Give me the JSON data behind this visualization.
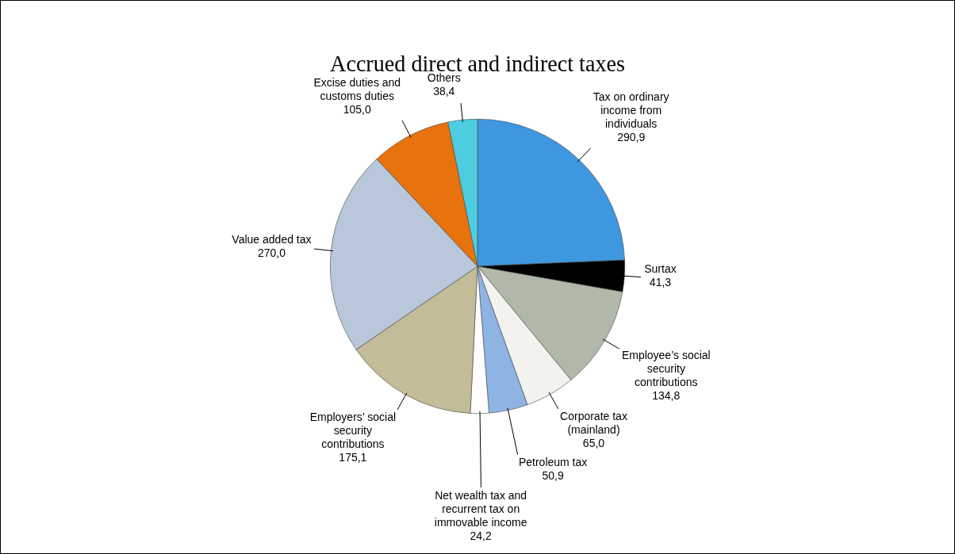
{
  "chart_data": {
    "type": "pie",
    "title": "Accrued direct and indirect taxes",
    "categories": [
      "Tax on ordinary income from individuals",
      "Surtax",
      "Employee’s social security contributions",
      "Corporate tax (mainland)",
      "Petroleum tax",
      "Net wealth tax and recurrent tax on immovable income",
      "Employers’ social security contributions",
      "Value added tax",
      "Excise duties and customs duties",
      "Others"
    ],
    "values": [
      290.9,
      41.3,
      134.8,
      65.0,
      50.9,
      24.2,
      175.1,
      270.0,
      105.0,
      38.4
    ],
    "value_labels": [
      "290,9",
      "41,3",
      "134,8",
      "65,0",
      "50,9",
      "24,2",
      "175,1",
      "270,0",
      "105,0",
      "38,4"
    ],
    "colors": [
      "#3f97e0",
      "#000000",
      "#b0b8aa",
      "#f2f2ee",
      "#8eb4e3",
      "#ffffff",
      "#c4bb98",
      "#b8c7d9",
      "#e8720c",
      "#4ecde0"
    ],
    "legend": false
  }
}
